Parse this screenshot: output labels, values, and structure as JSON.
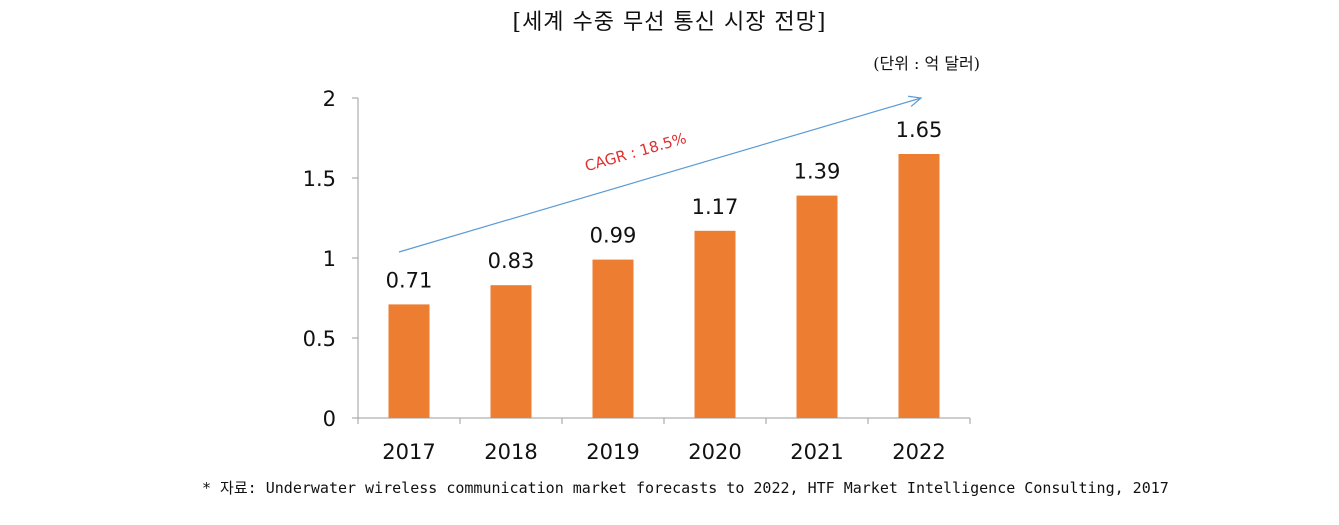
{
  "title": "[세계 수중 무선 통신 시장 전망]",
  "unit_label": "(단위 : 억 달러)",
  "source_note": "* 자료: Underwater wireless communication market forecasts to 2022, HTF Market Intelligence Consulting, 2017",
  "annotation": "CAGR : 18.5%",
  "colors": {
    "bar": "#ED7D31",
    "arrow": "#5B9BD5",
    "annotation": "#E03030",
    "axis": "#9E9E9E"
  },
  "chart_data": {
    "type": "bar",
    "categories": [
      "2017",
      "2018",
      "2019",
      "2020",
      "2021",
      "2022"
    ],
    "values": [
      0.71,
      0.83,
      0.99,
      1.17,
      1.39,
      1.65
    ],
    "value_labels": [
      "0.71",
      "0.83",
      "0.99",
      "1.17",
      "1.39",
      "1.65"
    ],
    "yticks": [
      "0",
      "0.5",
      "1",
      "1.5",
      "2"
    ],
    "ylim": [
      0,
      2
    ],
    "grid": false,
    "title": "[세계 수중 무선 통신 시장 전망]"
  }
}
